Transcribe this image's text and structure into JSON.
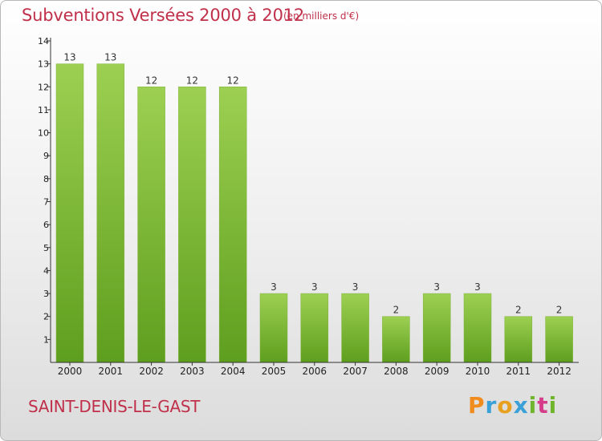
{
  "header": {
    "title": "Subventions Versées 2000 à 2012",
    "subtitle": "(en milliers d'€)"
  },
  "footer": {
    "place": "SAINT-DENIS-LE-GAST",
    "logo_text": "Proxiti",
    "logo_colors": [
      "#f08c1e",
      "#3aa0d8",
      "#e8a020",
      "#3aa0d8",
      "#6fb52c",
      "#d63c8a",
      "#6fb52c"
    ]
  },
  "colors": {
    "title": "#c0304a",
    "bar_top": "#9dd052",
    "bar_bottom": "#5e9e1e",
    "axis": "#333333"
  },
  "chart_data": {
    "type": "bar",
    "categories": [
      "2000",
      "2001",
      "2002",
      "2003",
      "2004",
      "2005",
      "2006",
      "2007",
      "2008",
      "2009",
      "2010",
      "2011",
      "2012"
    ],
    "values": [
      13,
      13,
      12,
      12,
      12,
      3,
      3,
      3,
      2,
      3,
      3,
      2,
      2
    ],
    "data_labels": [
      "13",
      "13",
      "12",
      "12",
      "12",
      "3",
      "3",
      "3",
      "2",
      "3",
      "3",
      "2",
      "2"
    ],
    "y_ticks": [
      "1",
      "2",
      "3",
      "4",
      "5",
      "6",
      "7",
      "8",
      "9",
      "10",
      "11",
      "12",
      "13",
      "14"
    ],
    "ylim": [
      0,
      14
    ],
    "grid": false
  }
}
